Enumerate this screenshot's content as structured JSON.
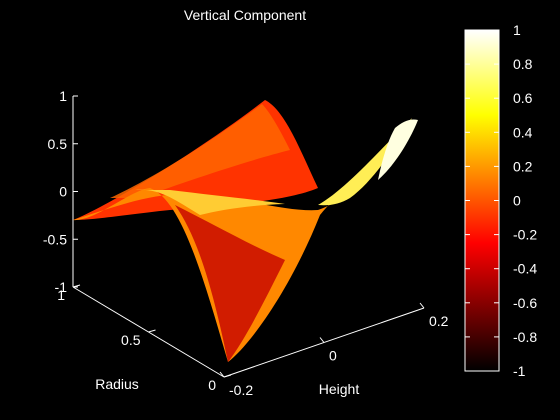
{
  "chart_data": {
    "type": "surface",
    "title": "Vertical Component",
    "xlabel": "Height",
    "ylabel": "Radius",
    "zlabel": "",
    "x_range": [
      -0.2,
      0.2
    ],
    "y_range": [
      0,
      1
    ],
    "z_range": [
      -1,
      1
    ],
    "x_ticks": [
      "-0.2",
      "0",
      "0.2"
    ],
    "y_ticks": [
      "0",
      "0.5",
      "1"
    ],
    "z_ticks": [
      "-1",
      "-0.5",
      "0",
      "0.5",
      "1"
    ],
    "colormap": "hot",
    "colorbar": {
      "range": [
        -1,
        1
      ],
      "ticks": [
        "1",
        "0.8",
        "0.6",
        "0.4",
        "0.2",
        "0",
        "-0.2",
        "-0.4",
        "-0.6",
        "-0.8",
        "-1"
      ]
    },
    "background": "#000000",
    "axis_color": "#ffffff"
  }
}
